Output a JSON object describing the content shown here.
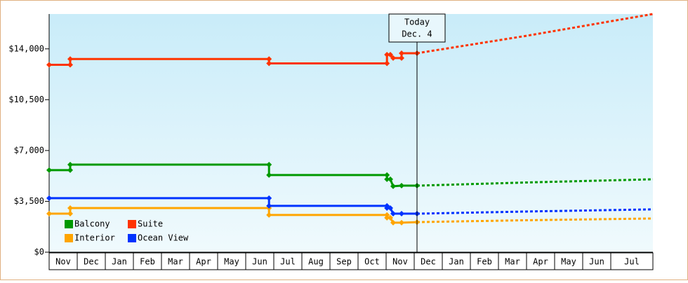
{
  "chart_data": {
    "type": "line",
    "annotation": {
      "text": "Today",
      "date": "Dec. 4",
      "x": 13.1
    },
    "xlim": [
      0,
      21.5
    ],
    "xticks": [
      {
        "value": 0,
        "label": "Nov"
      },
      {
        "value": 1,
        "label": "Dec"
      },
      {
        "value": 2,
        "label": "Jan"
      },
      {
        "value": 3,
        "label": "Feb"
      },
      {
        "value": 4,
        "label": "Mar"
      },
      {
        "value": 5,
        "label": "Apr"
      },
      {
        "value": 6,
        "label": "May"
      },
      {
        "value": 7,
        "label": "Jun"
      },
      {
        "value": 8,
        "label": "Jul"
      },
      {
        "value": 9,
        "label": "Aug"
      },
      {
        "value": 10,
        "label": "Sep"
      },
      {
        "value": 11,
        "label": "Oct"
      },
      {
        "value": 12,
        "label": "Nov"
      },
      {
        "value": 13,
        "label": "Dec"
      },
      {
        "value": 14,
        "label": "Jan"
      },
      {
        "value": 15,
        "label": "Feb"
      },
      {
        "value": 16,
        "label": "Mar"
      },
      {
        "value": 17,
        "label": "Apr"
      },
      {
        "value": 18,
        "label": "May"
      },
      {
        "value": 19,
        "label": "Jun"
      },
      {
        "value": 20,
        "label": "Jul"
      }
    ],
    "ylim": [
      0,
      16400
    ],
    "yticks": [
      {
        "value": 0,
        "label": "$0"
      },
      {
        "value": 3500,
        "label": "$3,500"
      },
      {
        "value": 7000,
        "label": "$7,000"
      },
      {
        "value": 10500,
        "label": "$10,500"
      },
      {
        "value": 14000,
        "label": "$14,000"
      }
    ],
    "series": [
      {
        "name": "Balcony",
        "color": "#009900",
        "x": [
          0,
          0.75,
          0.75,
          7.83,
          7.83,
          12.03,
          12.03,
          12.15,
          12.25,
          12.55,
          13.1
        ],
        "values": [
          5650,
          5650,
          6030,
          6030,
          5310,
          5310,
          5020,
          5020,
          4540,
          4580,
          4580
        ],
        "forecast": {
          "x": [
            13.1,
            17,
            21.5
          ],
          "values": [
            4580,
            4800,
            5020
          ]
        }
      },
      {
        "name": "Suite",
        "color": "#ff3300",
        "x": [
          0,
          0.75,
          0.75,
          7.83,
          7.83,
          12.03,
          12.03,
          12.15,
          12.25,
          12.55,
          12.55,
          13.1
        ],
        "values": [
          12900,
          12900,
          13300,
          13300,
          13000,
          13000,
          13600,
          13600,
          13370,
          13370,
          13700,
          13700
        ],
        "forecast": {
          "x": [
            13.1,
            17,
            21.5
          ],
          "values": [
            13700,
            14900,
            16400
          ]
        }
      },
      {
        "name": "Interior",
        "color": "#ffa500",
        "x": [
          0,
          0.75,
          0.75,
          7.83,
          7.83,
          12.03,
          12.03,
          12.15,
          12.25,
          12.55,
          13.1
        ],
        "values": [
          2650,
          2650,
          3040,
          3040,
          2560,
          2560,
          2370,
          2370,
          2030,
          2030,
          2070
        ],
        "forecast": {
          "x": [
            13.1,
            17,
            21.5
          ],
          "values": [
            2070,
            2200,
            2320
          ]
        }
      },
      {
        "name": "Ocean View",
        "color": "#0033ff",
        "x": [
          0,
          7.83,
          7.83,
          12.03,
          12.03,
          12.15,
          12.25,
          12.55,
          13.1
        ],
        "values": [
          3720,
          3720,
          3190,
          3190,
          3040,
          3040,
          2650,
          2650,
          2650
        ],
        "forecast": {
          "x": [
            13.1,
            17,
            21.5
          ],
          "values": [
            2650,
            2800,
            2950
          ]
        }
      }
    ]
  }
}
